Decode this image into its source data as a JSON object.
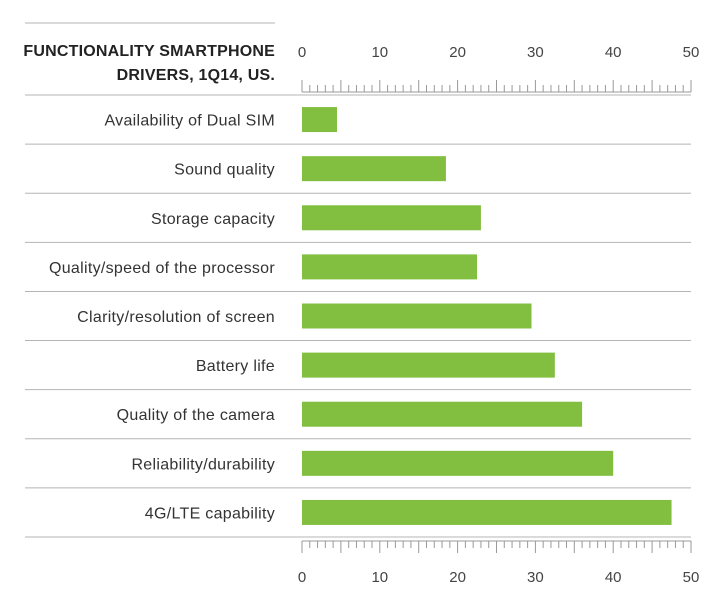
{
  "chart_data": {
    "type": "bar",
    "orientation": "horizontal",
    "title_lines": [
      "FUNCTIONALITY SMARTPHONE",
      "DRIVERS, 1Q14, US."
    ],
    "categories": [
      "Availability of Dual SIM",
      "Sound quality",
      "Storage capacity",
      "Quality/speed of the processor",
      "Clarity/resolution of screen",
      "Battery life",
      "Quality of the camera",
      "Reliability/durability",
      "4G/LTE capability"
    ],
    "values": [
      4.5,
      18.5,
      23,
      22.5,
      29.5,
      32.5,
      36,
      40,
      47.5
    ],
    "xlim": [
      0,
      50
    ],
    "ticks": [
      "0",
      "10",
      "20",
      "30",
      "40",
      "50"
    ],
    "axis_positions": [
      "top",
      "bottom"
    ],
    "grid": false,
    "colors": {
      "bar": "#82bf41",
      "separator": "#b5b5b5",
      "axis": "#999999"
    }
  }
}
